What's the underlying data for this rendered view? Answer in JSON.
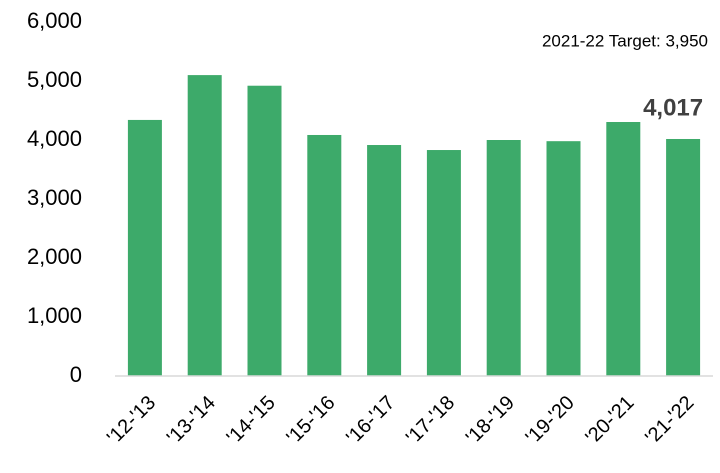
{
  "chart_data": {
    "type": "bar",
    "annotation": "2021-22 Target: 3,950",
    "categories": [
      "'12-'13",
      "'13-'14",
      "'14-'15",
      "'15-'16",
      "'16-'17",
      "'17-'18",
      "'18-'19",
      "'19-'20",
      "'20-'21",
      "'21-'22"
    ],
    "values": [
      4340,
      5100,
      4920,
      4085,
      3915,
      3830,
      4000,
      3980,
      4305,
      4017
    ],
    "value_labels": [
      null,
      null,
      null,
      null,
      null,
      null,
      null,
      null,
      null,
      "4,017"
    ],
    "color": "#3daa6a",
    "ylim": [
      0,
      6000
    ],
    "yticks": [
      0,
      {
        "value": 1000,
        "label": "1,000"
      },
      {
        "value": 2000,
        "label": "2,000"
      },
      {
        "value": 3000,
        "label": "3,000"
      },
      {
        "value": 4000,
        "label": "4,000"
      },
      {
        "value": 5000,
        "label": "5,000"
      },
      {
        "value": 6000,
        "label": "6,000"
      }
    ],
    "grid": false
  }
}
